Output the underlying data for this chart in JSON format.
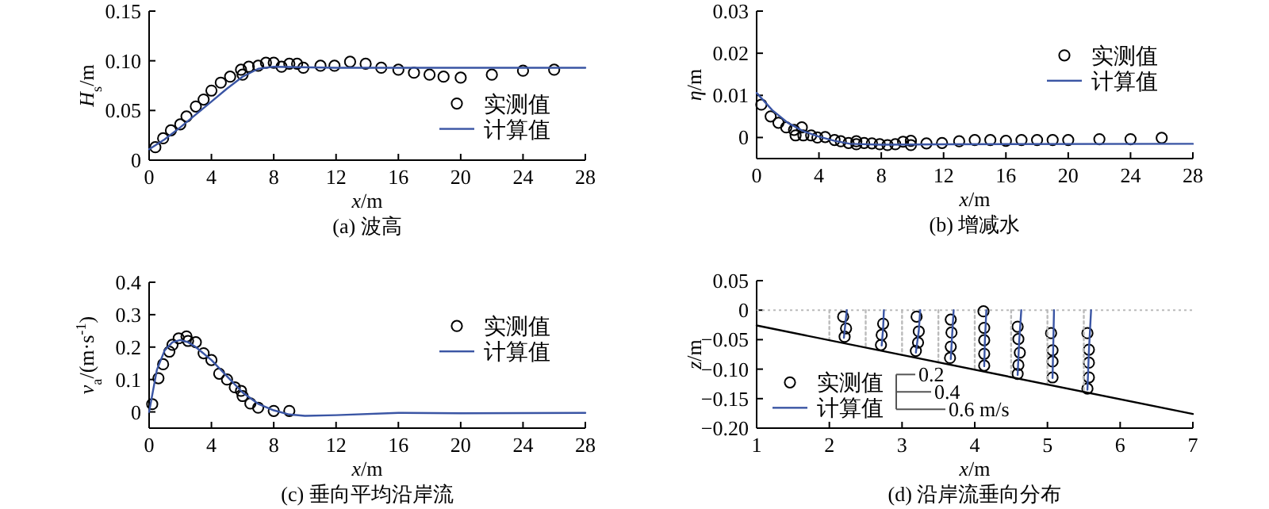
{
  "chart_data": [
    {
      "type": "scatter",
      "title": "(a) 波高",
      "xlabel": "*x*/m",
      "ylabel": "*H*$_{s}$/m",
      "xlim": [
        0,
        28
      ],
      "xticks": [
        0,
        4,
        8,
        12,
        16,
        20,
        24,
        28
      ],
      "ylim": [
        0,
        0.15
      ],
      "yticks": [
        0,
        0.05,
        {
          "value": 0.1,
          "label": "0.10"
        },
        0.15
      ],
      "legend": "right",
      "series": [
        {
          "name": "实测值",
          "marker": "circle",
          "color": "#000000",
          "x": [
            0.4,
            0.9,
            1.4,
            2.0,
            2.4,
            3.0,
            3.5,
            4.0,
            4.6,
            5.2,
            5.9,
            6.0,
            6.4,
            7.0,
            7.5,
            8.0,
            8.5,
            9.0,
            9.5,
            9.9,
            11,
            11.9,
            12.9,
            13.9,
            14.9,
            16,
            17,
            18,
            18.9,
            20,
            22,
            24,
            26
          ],
          "values": [
            0.013,
            0.022,
            0.03,
            0.036,
            0.044,
            0.054,
            0.061,
            0.07,
            0.078,
            0.084,
            0.091,
            0.086,
            0.094,
            0.095,
            0.098,
            0.098,
            0.094,
            0.097,
            0.097,
            0.093,
            0.095,
            0.095,
            0.099,
            0.097,
            0.093,
            0.091,
            0.088,
            0.086,
            0.084,
            0.083,
            0.086,
            0.09,
            0.091
          ]
        },
        {
          "name": "计算值",
          "type": "line",
          "color": "#3a55a4",
          "x": [
            0,
            1,
            2,
            3,
            4,
            5,
            6,
            7,
            8,
            12,
            28
          ],
          "values": [
            0.011,
            0.021,
            0.033,
            0.046,
            0.059,
            0.072,
            0.084,
            0.092,
            0.094,
            0.093,
            0.093
          ]
        }
      ]
    },
    {
      "type": "scatter",
      "title": "(b) 增减水",
      "xlabel": "*x*/m",
      "ylabel": "*η*/m",
      "xlim": [
        0,
        28
      ],
      "xticks": [
        0,
        4,
        8,
        12,
        16,
        20,
        24,
        28
      ],
      "ylim": [
        -0.005,
        0.03
      ],
      "yticks": [
        0,
        0.01,
        0.02,
        0.03
      ],
      "legend": "top right",
      "series": [
        {
          "name": "实测值",
          "marker": "circle",
          "color": "#000000",
          "x": [
            0.3,
            0.9,
            1.4,
            1.9,
            2.4,
            2.5,
            2.9,
            3.0,
            3.5,
            3.9,
            4.4,
            5.0,
            5.4,
            5.9,
            6.4,
            6.4,
            6.9,
            7.4,
            7.9,
            8.4,
            8.9,
            9.4,
            9.9,
            9.9,
            10.9,
            11.9,
            13,
            14,
            15,
            16,
            17,
            18,
            19,
            20,
            22,
            24,
            26
          ],
          "values": [
            0.0078,
            0.005,
            0.0035,
            0.0024,
            0.0018,
            0.0005,
            0.0024,
            0.0005,
            0.0005,
            0,
            0.0001,
            -0.0006,
            -0.0009,
            -0.0013,
            -0.0016,
            -0.0009,
            -0.0013,
            -0.0014,
            -0.0016,
            -0.0018,
            -0.0016,
            -0.001,
            -0.0018,
            -0.0008,
            -0.0014,
            -0.0013,
            -0.0009,
            -0.0006,
            -0.0006,
            -0.0008,
            -0.0006,
            -0.0006,
            -0.0006,
            -0.0006,
            -0.0004,
            -0.0004,
            -0.0001
          ]
        },
        {
          "name": "计算值",
          "type": "line",
          "color": "#3a55a4",
          "x": [
            0,
            1,
            2,
            3,
            4,
            5,
            6,
            8,
            12,
            28
          ],
          "values": [
            0.0106,
            0.0065,
            0.0035,
            0.0015,
            0.0002,
            -0.0008,
            -0.0015,
            -0.0017,
            -0.0016,
            -0.0015
          ]
        }
      ]
    },
    {
      "type": "scatter",
      "title": "(c) 垂向平均沿岸流",
      "xlabel": "*x*/m",
      "ylabel": "*v*$_{a}$/(m·s$^{-1}$)",
      "xlim": [
        0,
        28
      ],
      "xticks": [
        0,
        4,
        8,
        12,
        16,
        20,
        24,
        28
      ],
      "ylim": [
        -0.05,
        0.4
      ],
      "yticks": [
        0,
        0.1,
        0.2,
        0.3,
        0.4
      ],
      "legend": "top right",
      "series": [
        {
          "name": "实测值",
          "marker": "circle",
          "color": "#000000",
          "x": [
            0.2,
            0.6,
            0.9,
            1.3,
            1.5,
            1.9,
            2.4,
            2.5,
            3.0,
            3.5,
            4.0,
            4.5,
            5.0,
            5.5,
            5.9,
            6.0,
            6.5,
            7.0,
            8.0,
            9.0
          ],
          "values": [
            0.024,
            0.104,
            0.147,
            0.186,
            0.207,
            0.227,
            0.233,
            0.219,
            0.215,
            0.181,
            0.16,
            0.118,
            0.1,
            0.076,
            0.065,
            0.049,
            0.026,
            0.013,
            0.003,
            0.003
          ]
        },
        {
          "name": "计算值",
          "type": "line",
          "color": "#3a55a4",
          "x": [
            0,
            0.5,
            1,
            1.5,
            2,
            2.5,
            3,
            4,
            5,
            6,
            7,
            8,
            9,
            10,
            12,
            16,
            20,
            28
          ],
          "values": [
            0,
            0.13,
            0.19,
            0.215,
            0.222,
            0.215,
            0.2,
            0.16,
            0.11,
            0.06,
            0.025,
            0.005,
            -0.008,
            -0.012,
            -0.01,
            -0.003,
            -0.004,
            -0.003
          ]
        }
      ]
    },
    {
      "type": "scatter",
      "title": "(d) 沿岸流垂向分布",
      "xlabel": "*x*/m",
      "ylabel": "*z*/m",
      "xlim": [
        1,
        7
      ],
      "xticks": [
        1,
        2,
        3,
        4,
        5,
        6,
        7
      ],
      "ylim": [
        -0.2,
        0.05
      ],
      "yticks": [
        {
          "value": -0.2,
          "label": "−0.20"
        },
        {
          "value": -0.15,
          "label": "−0.15"
        },
        {
          "value": -0.1,
          "label": "−0.10"
        },
        {
          "value": -0.05,
          "label": "−0.05"
        },
        0,
        0.05
      ],
      "legend": "bottom left",
      "annotations": [
        "0.2",
        "0.4",
        "0.6 m/s"
      ],
      "ref_lines": [
        {
          "axis": "y",
          "value": 0,
          "color": "#bbbbbb",
          "line_style": "dotted"
        }
      ],
      "series": [
        {
          "name": "实测值",
          "marker": "circle",
          "color": "#000000",
          "x": [
            2.19,
            2.23,
            2.21,
            2.74,
            2.72,
            2.71,
            3.2,
            3.23,
            3.22,
            3.19,
            3.67,
            3.68,
            3.67,
            3.66,
            4.12,
            4.13,
            4.13,
            4.13,
            4.13,
            4.59,
            4.6,
            4.62,
            4.6,
            4.59,
            5.05,
            5.07,
            5.07,
            5.07,
            5.55,
            5.57,
            5.57,
            5.57,
            5.55
          ],
          "values": [
            -0.011,
            -0.031,
            -0.045,
            -0.023,
            -0.042,
            -0.059,
            -0.011,
            -0.036,
            -0.055,
            -0.069,
            -0.016,
            -0.038,
            -0.062,
            -0.081,
            -0.002,
            -0.03,
            -0.051,
            -0.074,
            -0.094,
            -0.028,
            -0.049,
            -0.072,
            -0.093,
            -0.108,
            -0.039,
            -0.068,
            -0.087,
            -0.114,
            -0.039,
            -0.067,
            -0.089,
            -0.114,
            -0.133
          ]
        },
        {
          "type": "line",
          "color": "#bbbbbb",
          "line_style": "dotted",
          "x": [
            2,
            2
          ],
          "values": [
            0,
            -0.051
          ]
        },
        {
          "type": "line",
          "color": "#bbbbbb",
          "line_style": "dotted",
          "x": [
            2.5,
            2.5
          ],
          "values": [
            0,
            -0.064
          ]
        },
        {
          "type": "line",
          "color": "#bbbbbb",
          "line_style": "dotted",
          "x": [
            3,
            3
          ],
          "values": [
            0,
            -0.076
          ]
        },
        {
          "type": "line",
          "color": "#bbbbbb",
          "line_style": "dotted",
          "x": [
            3.5,
            3.5
          ],
          "values": [
            0,
            -0.089
          ]
        },
        {
          "type": "line",
          "color": "#bbbbbb",
          "line_style": "dotted",
          "x": [
            4,
            4
          ],
          "values": [
            0,
            -0.101
          ]
        },
        {
          "type": "line",
          "color": "#bbbbbb",
          "line_style": "dotted",
          "x": [
            4.5,
            4.5
          ],
          "values": [
            0,
            -0.114
          ]
        },
        {
          "type": "line",
          "color": "#bbbbbb",
          "line_style": "dotted",
          "x": [
            5,
            5
          ],
          "values": [
            0,
            -0.126
          ]
        },
        {
          "type": "line",
          "color": "#bbbbbb",
          "line_style": "dotted",
          "x": [
            5.5,
            5.5
          ],
          "values": [
            0,
            -0.139
          ]
        },
        {
          "type": "line",
          "color": "#000000",
          "x": [
            1,
            7
          ],
          "values": [
            -0.026,
            -0.176
          ]
        },
        {
          "name": "计算值",
          "type": "line",
          "color": "#3a55a4",
          "x": [
            2.24,
            2.2,
            null,
            2.75,
            2.74,
            2.72,
            null,
            3.25,
            3.23,
            3.19,
            null,
            3.71,
            3.69,
            3.67,
            null,
            4.16,
            4.14,
            4.13,
            null,
            4.64,
            4.61,
            4.59,
            null,
            5.09,
            5.08,
            5.07,
            null,
            5.6,
            5.57,
            5.55
          ],
          "values": [
            0,
            -0.047,
            null,
            0,
            -0.03,
            -0.06,
            null,
            0,
            -0.035,
            -0.072,
            null,
            0,
            -0.04,
            -0.083,
            null,
            0,
            -0.05,
            -0.095,
            null,
            0,
            -0.055,
            -0.11,
            null,
            0,
            -0.06,
            -0.115,
            null,
            0,
            -0.07,
            -0.135
          ]
        }
      ]
    }
  ]
}
